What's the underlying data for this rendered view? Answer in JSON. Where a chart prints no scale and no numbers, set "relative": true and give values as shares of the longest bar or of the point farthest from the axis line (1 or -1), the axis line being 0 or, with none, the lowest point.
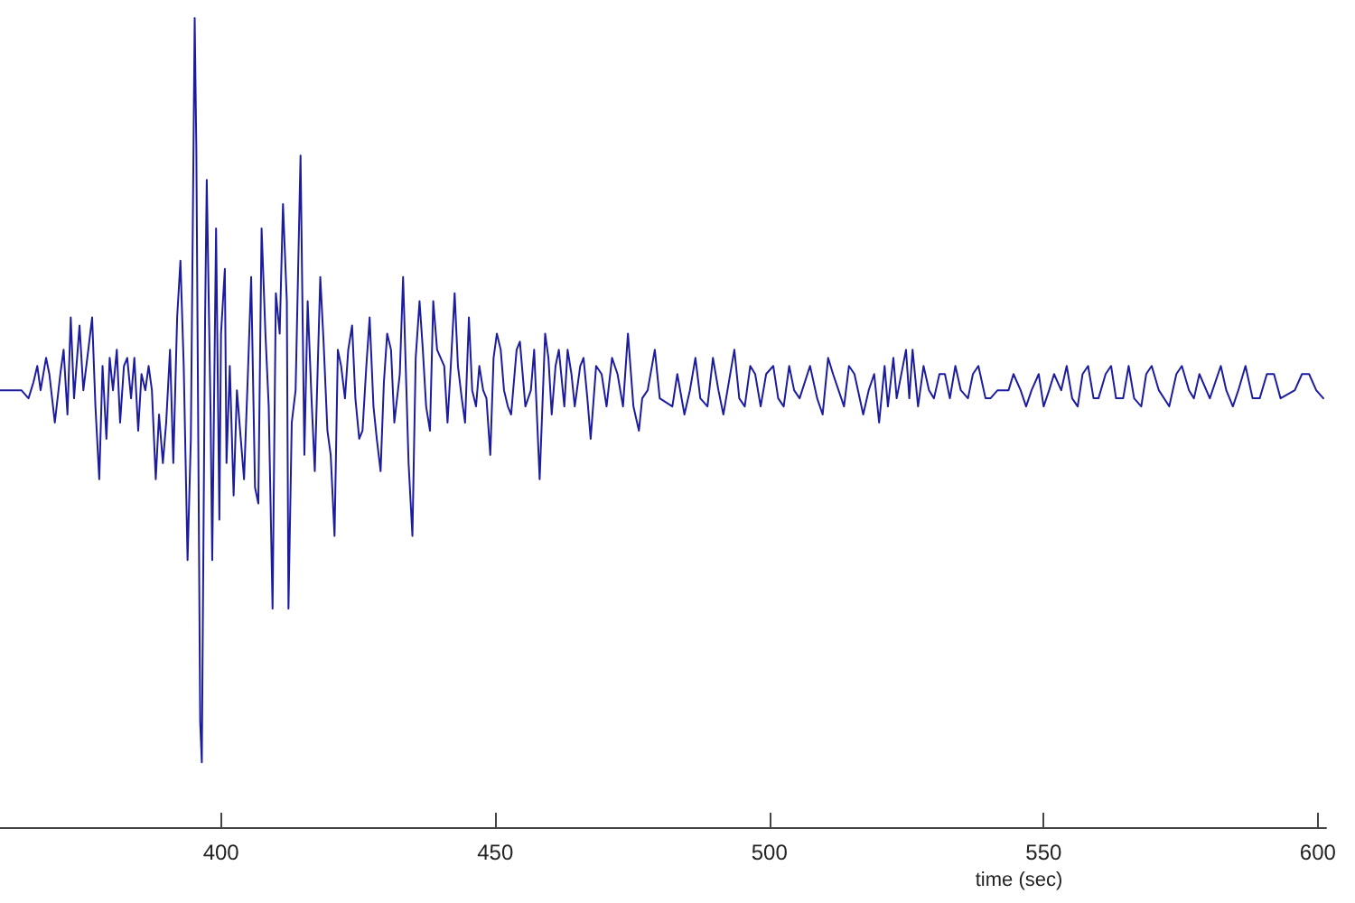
{
  "chart_data": {
    "type": "line",
    "xlabel": "time (sec)",
    "relative": true,
    "marker": "none",
    "line_style": "solid",
    "xlim": [
      359.7,
      601.5
    ],
    "xticks": [
      400,
      450,
      500,
      550,
      600
    ],
    "series": [
      {
        "color": "#1c1ca0",
        "x": [
          359.7,
          362.3,
          363.6,
          364.9,
          365.8,
          366.5,
          367.1,
          368.1,
          368.7,
          369.7,
          370.7,
          371.3,
          372.0,
          372.6,
          373.2,
          374.2,
          374.9,
          375.8,
          376.5,
          377.1,
          377.8,
          378.4,
          379.1,
          379.7,
          380.3,
          381.0,
          381.6,
          382.3,
          382.9,
          383.6,
          384.2,
          384.9,
          385.5,
          386.2,
          386.8,
          387.4,
          388.1,
          388.7,
          389.4,
          390.0,
          390.7,
          391.3,
          392.0,
          392.6,
          393.2,
          393.9,
          394.5,
          395.2,
          395.5,
          396.2,
          396.5,
          397.1,
          397.4,
          398.1,
          398.4,
          399.1,
          399.7,
          400.0,
          400.7,
          401.0,
          401.6,
          402.3,
          402.9,
          403.6,
          404.2,
          404.9,
          405.5,
          406.2,
          406.8,
          407.4,
          408.1,
          408.7,
          409.4,
          410.0,
          410.7,
          411.3,
          412.0,
          412.3,
          412.9,
          413.6,
          414.5,
          415.2,
          415.8,
          416.5,
          417.1,
          418.1,
          418.7,
          419.4,
          420.0,
          420.7,
          421.3,
          421.9,
          422.6,
          423.2,
          423.9,
          424.5,
          425.2,
          425.8,
          426.5,
          427.1,
          427.8,
          428.4,
          429.1,
          429.7,
          430.3,
          431.0,
          431.6,
          432.6,
          433.2,
          434.2,
          434.9,
          435.5,
          436.2,
          436.8,
          437.4,
          438.1,
          438.7,
          439.4,
          440.7,
          441.3,
          441.9,
          442.6,
          443.2,
          443.9,
          444.5,
          445.2,
          445.8,
          446.5,
          447.1,
          447.8,
          448.4,
          449.1,
          449.7,
          450.3,
          451.0,
          451.6,
          452.3,
          452.9,
          453.9,
          454.5,
          455.5,
          456.5,
          457.1,
          458.1,
          459.1,
          459.7,
          460.3,
          461.0,
          461.6,
          462.6,
          463.2,
          463.9,
          464.5,
          465.5,
          466.1,
          466.8,
          467.4,
          468.4,
          469.4,
          470.3,
          471.3,
          472.3,
          473.3,
          474.2,
          475.2,
          476.2,
          476.8,
          477.8,
          479.1,
          480.0,
          482.3,
          483.2,
          484.5,
          485.5,
          486.5,
          487.4,
          488.7,
          489.7,
          490.7,
          491.6,
          492.6,
          493.6,
          494.5,
          495.5,
          496.5,
          497.4,
          498.4,
          499.4,
          500.7,
          501.6,
          502.6,
          503.6,
          504.5,
          505.5,
          507.4,
          508.7,
          509.7,
          510.7,
          511.6,
          512.6,
          513.6,
          514.5,
          515.5,
          517.1,
          518.1,
          519.1,
          520.0,
          521.0,
          521.6,
          522.6,
          523.2,
          524.9,
          525.5,
          526.1,
          527.1,
          528.1,
          529.1,
          530.0,
          531.0,
          532.0,
          532.9,
          533.9,
          534.9,
          536.2,
          537.1,
          538.1,
          539.4,
          540.3,
          541.6,
          543.6,
          544.5,
          545.8,
          546.8,
          547.8,
          549.1,
          550.0,
          551.0,
          551.9,
          553.2,
          554.2,
          555.2,
          556.2,
          557.1,
          558.1,
          559.1,
          560.0,
          561.3,
          562.3,
          563.2,
          564.5,
          565.5,
          566.5,
          567.8,
          568.7,
          569.7,
          571.0,
          572.9,
          574.2,
          575.2,
          576.5,
          577.4,
          578.4,
          580.3,
          582.3,
          583.3,
          584.5,
          585.5,
          586.8,
          588.1,
          589.4,
          590.7,
          592.0,
          593.2,
          595.8,
          597.1,
          598.4,
          599.7,
          601.0
        ],
        "values": [
          0.54,
          0.54,
          0.54,
          0.53,
          0.55,
          0.57,
          0.54,
          0.58,
          0.56,
          0.5,
          0.56,
          0.59,
          0.51,
          0.63,
          0.53,
          0.62,
          0.54,
          0.59,
          0.63,
          0.52,
          0.43,
          0.57,
          0.48,
          0.58,
          0.54,
          0.59,
          0.5,
          0.57,
          0.58,
          0.53,
          0.58,
          0.49,
          0.56,
          0.54,
          0.57,
          0.54,
          0.43,
          0.51,
          0.45,
          0.5,
          0.59,
          0.45,
          0.63,
          0.7,
          0.57,
          0.33,
          0.48,
          1.0,
          0.84,
          0.13,
          0.08,
          0.63,
          0.8,
          0.51,
          0.33,
          0.74,
          0.38,
          0.61,
          0.69,
          0.45,
          0.57,
          0.41,
          0.54,
          0.48,
          0.43,
          0.56,
          0.68,
          0.42,
          0.4,
          0.74,
          0.61,
          0.52,
          0.27,
          0.66,
          0.61,
          0.77,
          0.65,
          0.27,
          0.5,
          0.54,
          0.83,
          0.46,
          0.65,
          0.53,
          0.44,
          0.68,
          0.6,
          0.49,
          0.46,
          0.36,
          0.59,
          0.57,
          0.53,
          0.59,
          0.62,
          0.53,
          0.48,
          0.49,
          0.57,
          0.63,
          0.52,
          0.48,
          0.44,
          0.55,
          0.61,
          0.59,
          0.5,
          0.56,
          0.68,
          0.45,
          0.36,
          0.58,
          0.65,
          0.59,
          0.52,
          0.49,
          0.65,
          0.59,
          0.57,
          0.5,
          0.57,
          0.66,
          0.57,
          0.53,
          0.5,
          0.63,
          0.54,
          0.52,
          0.57,
          0.54,
          0.53,
          0.46,
          0.58,
          0.61,
          0.59,
          0.54,
          0.52,
          0.51,
          0.59,
          0.6,
          0.52,
          0.54,
          0.59,
          0.43,
          0.61,
          0.58,
          0.51,
          0.57,
          0.59,
          0.52,
          0.59,
          0.56,
          0.52,
          0.57,
          0.58,
          0.53,
          0.48,
          0.57,
          0.56,
          0.52,
          0.58,
          0.56,
          0.52,
          0.61,
          0.52,
          0.49,
          0.53,
          0.54,
          0.59,
          0.53,
          0.52,
          0.56,
          0.51,
          0.54,
          0.58,
          0.53,
          0.52,
          0.58,
          0.54,
          0.51,
          0.55,
          0.59,
          0.53,
          0.52,
          0.57,
          0.56,
          0.52,
          0.56,
          0.57,
          0.53,
          0.52,
          0.57,
          0.54,
          0.53,
          0.57,
          0.53,
          0.51,
          0.58,
          0.56,
          0.54,
          0.52,
          0.57,
          0.56,
          0.51,
          0.54,
          0.56,
          0.5,
          0.57,
          0.52,
          0.58,
          0.53,
          0.59,
          0.53,
          0.59,
          0.52,
          0.57,
          0.54,
          0.53,
          0.56,
          0.56,
          0.53,
          0.57,
          0.54,
          0.53,
          0.56,
          0.57,
          0.53,
          0.53,
          0.54,
          0.54,
          0.56,
          0.54,
          0.52,
          0.54,
          0.56,
          0.52,
          0.54,
          0.56,
          0.54,
          0.57,
          0.53,
          0.52,
          0.56,
          0.57,
          0.53,
          0.53,
          0.56,
          0.57,
          0.53,
          0.53,
          0.57,
          0.53,
          0.52,
          0.56,
          0.57,
          0.54,
          0.52,
          0.56,
          0.57,
          0.54,
          0.53,
          0.56,
          0.53,
          0.57,
          0.54,
          0.52,
          0.54,
          0.57,
          0.53,
          0.53,
          0.56,
          0.56,
          0.53,
          0.54,
          0.56,
          0.56,
          0.54,
          0.53
        ]
      }
    ]
  }
}
